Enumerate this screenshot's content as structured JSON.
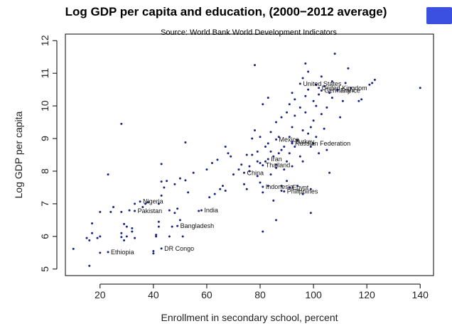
{
  "chart_data": {
    "type": "scatter",
    "title": "Log GDP per capita and education, (2000−2012 average)",
    "subtitle": "Source: World Bank World Development Indicators",
    "xlabel": "Enrollment in secondary school, percent",
    "ylabel": "Log GDP per capita",
    "xlim": [
      7,
      145
    ],
    "ylim": [
      4.8,
      12.2
    ],
    "x_ticks": [
      20,
      40,
      60,
      80,
      100,
      120,
      140
    ],
    "y_ticks": [
      5,
      6,
      7,
      8,
      9,
      10,
      11,
      12
    ],
    "grid": false,
    "point_color": "#1a237e",
    "labeled_points": [
      {
        "label": "United States",
        "x": 95,
        "y": 10.68
      },
      {
        "label": "United Kingdom",
        "x": 102,
        "y": 10.55
      },
      {
        "label": "Germany",
        "x": 103,
        "y": 10.47
      },
      {
        "label": "France",
        "x": 109,
        "y": 10.47
      },
      {
        "label": "Mexico",
        "x": 86,
        "y": 8.97
      },
      {
        "label": "Turkey",
        "x": 92,
        "y": 8.9
      },
      {
        "label": "Russian Federation",
        "x": 92,
        "y": 8.85
      },
      {
        "label": "Iran",
        "x": 83,
        "y": 8.37
      },
      {
        "label": "Thailand",
        "x": 81,
        "y": 8.18
      },
      {
        "label": "China",
        "x": 74,
        "y": 7.95
      },
      {
        "label": "Indonesia",
        "x": 81,
        "y": 7.52
      },
      {
        "label": "Egypt",
        "x": 91,
        "y": 7.5
      },
      {
        "label": "Philippines",
        "x": 89,
        "y": 7.38
      },
      {
        "label": "India",
        "x": 58,
        "y": 6.8
      },
      {
        "label": "Nigeria",
        "x": 35,
        "y": 7.07
      },
      {
        "label": "Pakistan",
        "x": 33,
        "y": 6.78
      },
      {
        "label": "Bangladesh",
        "x": 49,
        "y": 6.32
      },
      {
        "label": "DR Congo",
        "x": 43,
        "y": 5.63
      },
      {
        "label": "Ethiopia",
        "x": 23,
        "y": 5.52
      }
    ],
    "points": [
      [
        10,
        5.62
      ],
      [
        15,
        5.95
      ],
      [
        16,
        5.88
      ],
      [
        16,
        5.1
      ],
      [
        17,
        6.1
      ],
      [
        17,
        6.4
      ],
      [
        19,
        5.95
      ],
      [
        20,
        6.0
      ],
      [
        20,
        6.75
      ],
      [
        20,
        5.5
      ],
      [
        23,
        7.9
      ],
      [
        24,
        6.75
      ],
      [
        25,
        6.9
      ],
      [
        28,
        5.98
      ],
      [
        28,
        6.1
      ],
      [
        28,
        6.75
      ],
      [
        28,
        9.45
      ],
      [
        29,
        5.88
      ],
      [
        29,
        6.38
      ],
      [
        30,
        6.3
      ],
      [
        30,
        6.0
      ],
      [
        31,
        6.8
      ],
      [
        32,
        6.15
      ],
      [
        32,
        6.25
      ],
      [
        33,
        5.95
      ],
      [
        33,
        7.0
      ],
      [
        36,
        6.9
      ],
      [
        37,
        7.0
      ],
      [
        38,
        7.05
      ],
      [
        40,
        5.55
      ],
      [
        40,
        5.48
      ],
      [
        41,
        6.0
      ],
      [
        41,
        6.05
      ],
      [
        42,
        6.45
      ],
      [
        42,
        6.3
      ],
      [
        42,
        7.0
      ],
      [
        43,
        7.68
      ],
      [
        43,
        8.22
      ],
      [
        43,
        7.25
      ],
      [
        44,
        7.5
      ],
      [
        45,
        7.7
      ],
      [
        46,
        6.0
      ],
      [
        46,
        6.8
      ],
      [
        47,
        6.3
      ],
      [
        48,
        7.6
      ],
      [
        48,
        6.72
      ],
      [
        49,
        6.85
      ],
      [
        50,
        7.78
      ],
      [
        50,
        6.5
      ],
      [
        51,
        6.0
      ],
      [
        52,
        7.72
      ],
      [
        52,
        8.88
      ],
      [
        53,
        7.35
      ],
      [
        55,
        7.95
      ],
      [
        57,
        6.78
      ],
      [
        60,
        8.05
      ],
      [
        61,
        7.2
      ],
      [
        62,
        8.25
      ],
      [
        63,
        7.3
      ],
      [
        64,
        8.35
      ],
      [
        65,
        7.45
      ],
      [
        66,
        7.55
      ],
      [
        67,
        8.75
      ],
      [
        67,
        7.4
      ],
      [
        68,
        8.55
      ],
      [
        69,
        8.45
      ],
      [
        70,
        7.9
      ],
      [
        72,
        8.05
      ],
      [
        73,
        8.2
      ],
      [
        75,
        7.45
      ],
      [
        75,
        8.5
      ],
      [
        76,
        8.0
      ],
      [
        76,
        8.15
      ],
      [
        77,
        9.0
      ],
      [
        77,
        8.5
      ],
      [
        78,
        9.25
      ],
      [
        79,
        7.85
      ],
      [
        79,
        8.6
      ],
      [
        80,
        9.05
      ],
      [
        80,
        8.25
      ],
      [
        80,
        7.65
      ],
      [
        81,
        7.35
      ],
      [
        81,
        6.15
      ],
      [
        81,
        10.05
      ],
      [
        82,
        8.75
      ],
      [
        82,
        8.3
      ],
      [
        83,
        7.55
      ],
      [
        83,
        10.25
      ],
      [
        83,
        8.85
      ],
      [
        84,
        7.9
      ],
      [
        84,
        8.6
      ],
      [
        84,
        9.2
      ],
      [
        85,
        7.1
      ],
      [
        85,
        8.45
      ],
      [
        86,
        6.5
      ],
      [
        86,
        9.5
      ],
      [
        86,
        8.1
      ],
      [
        87,
        8.55
      ],
      [
        87,
        9.05
      ],
      [
        88,
        7.4
      ],
      [
        88,
        7.55
      ],
      [
        88,
        9.65
      ],
      [
        89,
        8.05
      ],
      [
        89,
        8.75
      ],
      [
        90,
        8.3
      ],
      [
        90,
        9.8
      ],
      [
        91,
        8.55
      ],
      [
        91,
        10.05
      ],
      [
        91,
        9.05
      ],
      [
        92,
        8.15
      ],
      [
        92,
        9.35
      ],
      [
        92,
        10.4
      ],
      [
        93,
        10.2
      ],
      [
        93,
        8.75
      ],
      [
        93,
        9.7
      ],
      [
        94,
        8.95
      ],
      [
        94,
        7.55
      ],
      [
        95,
        9.95
      ],
      [
        95,
        8.45
      ],
      [
        96,
        10.85
      ],
      [
        96,
        9.25
      ],
      [
        96,
        8.3
      ],
      [
        97,
        11.3
      ],
      [
        97,
        9.8
      ],
      [
        97,
        10.3
      ],
      [
        98,
        9.15
      ],
      [
        98,
        10.5
      ],
      [
        98,
        11.05
      ],
      [
        99,
        9.35
      ],
      [
        99,
        8.75
      ],
      [
        99,
        7.45
      ],
      [
        99,
        6.72
      ],
      [
        100,
        10.15
      ],
      [
        100,
        9.55
      ],
      [
        100,
        8.85
      ],
      [
        101,
        10.65
      ],
      [
        101,
        10.0
      ],
      [
        101,
        9.05
      ],
      [
        102,
        8.55
      ],
      [
        102,
        10.35
      ],
      [
        103,
        9.75
      ],
      [
        103,
        10.9
      ],
      [
        104,
        10.6
      ],
      [
        104,
        9.3
      ],
      [
        105,
        9.95
      ],
      [
        105,
        8.65
      ],
      [
        106,
        7.95
      ],
      [
        106,
        10.4
      ],
      [
        107,
        10.75
      ],
      [
        107,
        10.25
      ],
      [
        108,
        11.6
      ],
      [
        109,
        10.5
      ],
      [
        110,
        9.65
      ],
      [
        111,
        10.15
      ],
      [
        112,
        10.7
      ],
      [
        113,
        11.15
      ],
      [
        114,
        10.55
      ],
      [
        117,
        10.15
      ],
      [
        118,
        10.2
      ],
      [
        121,
        10.65
      ],
      [
        122,
        10.7
      ],
      [
        123,
        10.8
      ],
      [
        140,
        10.55
      ],
      [
        78,
        11.25
      ],
      [
        86,
        8.2
      ],
      [
        88,
        8.65
      ],
      [
        90,
        7.7
      ],
      [
        74,
        7.6
      ],
      [
        79,
        8.3
      ],
      [
        96,
        7.3
      ]
    ]
  }
}
